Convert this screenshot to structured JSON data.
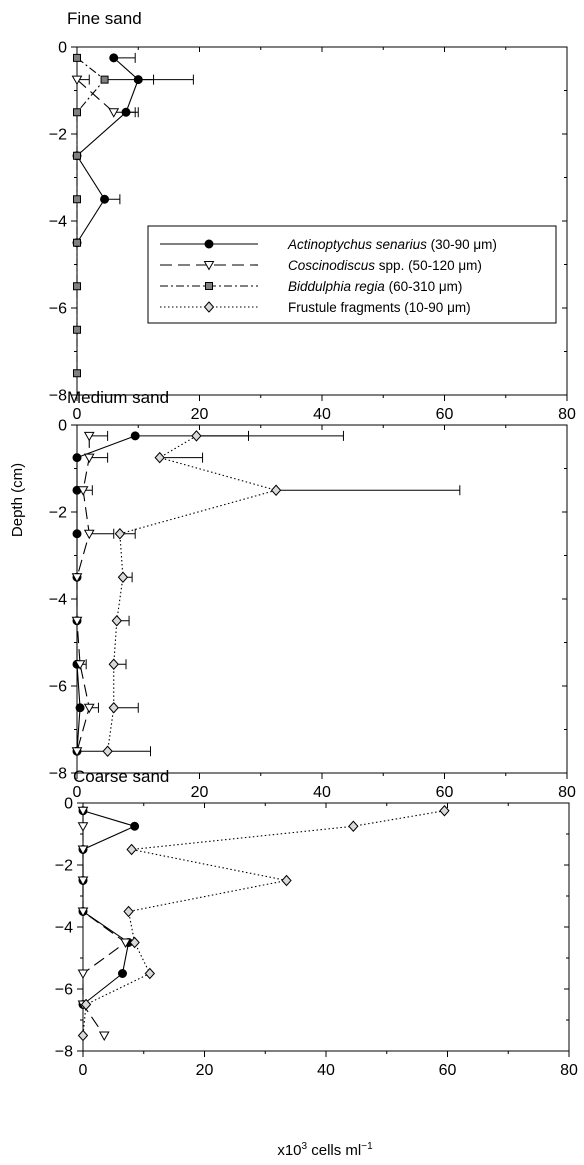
{
  "figure": {
    "ylabel": "Depth (cm)",
    "xlabel": {
      "main": "x10",
      "sup": "3",
      "mid": " cells ml",
      "sup2": "−1"
    }
  },
  "legend": {
    "placement": "inside-bottom-right",
    "entries": [
      {
        "italic": "Actinoptychus senarius",
        "rest": " (30-90 μm)"
      },
      {
        "italic": "Coscinodiscus",
        "rest": " spp. (50-120 μm)"
      },
      {
        "italic": "Biddulphia regia",
        "rest": " (60-310 μm)"
      },
      {
        "italic": "",
        "rest": "Frustule fragments (10-90 μm)"
      }
    ]
  },
  "styles": {
    "actinoptychus": {
      "marker": "circle",
      "fill": "#000000",
      "line": "solid"
    },
    "coscinodiscus": {
      "marker": "triangle-down",
      "fill": "#ffffff",
      "line": "long-dash"
    },
    "biddulphia": {
      "marker": "square",
      "fill": "#808080",
      "line": "dash-dot"
    },
    "fragments": {
      "marker": "diamond",
      "fill": "#d9d9d9",
      "line": "dotted"
    }
  },
  "chart_data": [
    {
      "type": "line",
      "title": "Fine sand",
      "xlim": [
        0,
        80
      ],
      "ylim": [
        -8,
        0
      ],
      "xticks": [
        0,
        20,
        40,
        60,
        80
      ],
      "yticks": [
        0,
        -2,
        -4,
        -6,
        -8
      ],
      "grid": false,
      "legend": true,
      "series": [
        {
          "key": "actinoptychus",
          "points": [
            {
              "x": 6,
              "y": -0.25,
              "err": 3.5
            },
            {
              "x": 10,
              "y": -0.75,
              "err": 9
            },
            {
              "x": 8,
              "y": -1.5,
              "err": 2
            },
            {
              "x": 0,
              "y": -2.5
            },
            {
              "x": 4.5,
              "y": -3.5,
              "err": 2.5
            },
            {
              "x": 0,
              "y": -4.5
            }
          ]
        },
        {
          "key": "coscinodiscus",
          "points": [
            {
              "x": 0,
              "y": -0.75,
              "err": 2
            },
            {
              "x": 6,
              "y": -1.5,
              "err": 3.5
            }
          ]
        },
        {
          "key": "biddulphia",
          "points": [
            {
              "x": 0,
              "y": -0.25
            },
            {
              "x": 4.5,
              "y": -0.75,
              "err": 8
            },
            {
              "x": 0,
              "y": -1.5
            },
            {
              "x": 0,
              "y": -2.5
            },
            {
              "x": 0,
              "y": -3.5
            },
            {
              "x": 0,
              "y": -4.5
            },
            {
              "x": 0,
              "y": -5.5
            },
            {
              "x": 0,
              "y": -6.5
            },
            {
              "x": 0,
              "y": -7.5
            }
          ]
        },
        {
          "key": "fragments",
          "points": []
        }
      ]
    },
    {
      "type": "line",
      "title": "Medium sand",
      "xlim": [
        0,
        80
      ],
      "ylim": [
        -8,
        0
      ],
      "xticks": [
        0,
        20,
        40,
        60,
        80
      ],
      "yticks": [
        0,
        -2,
        -4,
        -6,
        -8
      ],
      "grid": false,
      "legend": false,
      "series": [
        {
          "key": "actinoptychus",
          "points": [
            {
              "x": 9.5,
              "y": -0.25,
              "err": 18.5
            },
            {
              "x": 0,
              "y": -0.75
            },
            {
              "x": 0,
              "y": -1.5
            },
            {
              "x": 0,
              "y": -2.5
            },
            {
              "x": 0,
              "y": -3.5
            },
            {
              "x": 0,
              "y": -4.5
            },
            {
              "x": 0,
              "y": -5.5
            },
            {
              "x": 0.5,
              "y": -6.5
            },
            {
              "x": 0,
              "y": -7.5
            }
          ]
        },
        {
          "key": "coscinodiscus",
          "points": [
            {
              "x": 2,
              "y": -0.25,
              "err": 3
            },
            {
              "x": 2,
              "y": -0.75,
              "err": 3
            },
            {
              "x": 1,
              "y": -1.5,
              "err": 1.5
            },
            {
              "x": 2,
              "y": -2.5,
              "err": 4
            },
            {
              "x": 0,
              "y": -3.5
            },
            {
              "x": 0,
              "y": -4.5
            },
            {
              "x": 0.5,
              "y": -5.5,
              "err": 1
            },
            {
              "x": 2,
              "y": -6.5,
              "err": 1.5
            },
            {
              "x": 0,
              "y": -7.5,
              "err": 12
            }
          ]
        },
        {
          "key": "fragments",
          "points": [
            {
              "x": 19.5,
              "y": -0.25,
              "err": 24
            },
            {
              "x": 13.5,
              "y": -0.75,
              "err": 7
            },
            {
              "x": 32.5,
              "y": -1.5,
              "err": 30
            },
            {
              "x": 7,
              "y": -2.5,
              "err": 2.5
            },
            {
              "x": 7.5,
              "y": -3.5,
              "err": 1.5
            },
            {
              "x": 6.5,
              "y": -4.5,
              "err": 2
            },
            {
              "x": 6,
              "y": -5.5,
              "err": 2
            },
            {
              "x": 6,
              "y": -6.5,
              "err": 4
            },
            {
              "x": 5,
              "y": -7.5
            }
          ]
        }
      ]
    },
    {
      "type": "line",
      "title": "Coarse sand",
      "xlim": [
        0,
        80
      ],
      "ylim": [
        -8,
        0
      ],
      "xticks": [
        0,
        20,
        40,
        60,
        80
      ],
      "yticks": [
        0,
        -2,
        -4,
        -6,
        -8
      ],
      "grid": false,
      "legend": false,
      "series": [
        {
          "key": "actinoptychus",
          "points": [
            {
              "x": 0,
              "y": -0.25
            },
            {
              "x": 8.5,
              "y": -0.75
            },
            {
              "x": 0,
              "y": -1.5
            },
            {
              "x": 0,
              "y": -2.5
            },
            {
              "x": 0,
              "y": -3.5
            },
            {
              "x": 7.5,
              "y": -4.5
            },
            {
              "x": 6.5,
              "y": -5.5
            },
            {
              "x": 0,
              "y": -6.5
            }
          ]
        },
        {
          "key": "coscinodiscus",
          "points": [
            {
              "x": 0,
              "y": -0.25
            },
            {
              "x": 0,
              "y": -0.75
            },
            {
              "x": 0,
              "y": -1.5
            },
            {
              "x": 0,
              "y": -2.5
            },
            {
              "x": 0,
              "y": -3.5
            },
            {
              "x": 7,
              "y": -4.5
            },
            {
              "x": 0,
              "y": -5.5
            },
            {
              "x": 0,
              "y": -6.5
            },
            {
              "x": 3.5,
              "y": -7.5
            }
          ]
        },
        {
          "key": "fragments",
          "points": [
            {
              "x": 59.5,
              "y": -0.25
            },
            {
              "x": 44.5,
              "y": -0.75
            },
            {
              "x": 8,
              "y": -1.5
            },
            {
              "x": 33.5,
              "y": -2.5
            },
            {
              "x": 7.5,
              "y": -3.5
            },
            {
              "x": 8.5,
              "y": -4.5
            },
            {
              "x": 11,
              "y": -5.5
            },
            {
              "x": 0.5,
              "y": -6.5
            },
            {
              "x": 0,
              "y": -7.5
            }
          ]
        }
      ]
    }
  ]
}
